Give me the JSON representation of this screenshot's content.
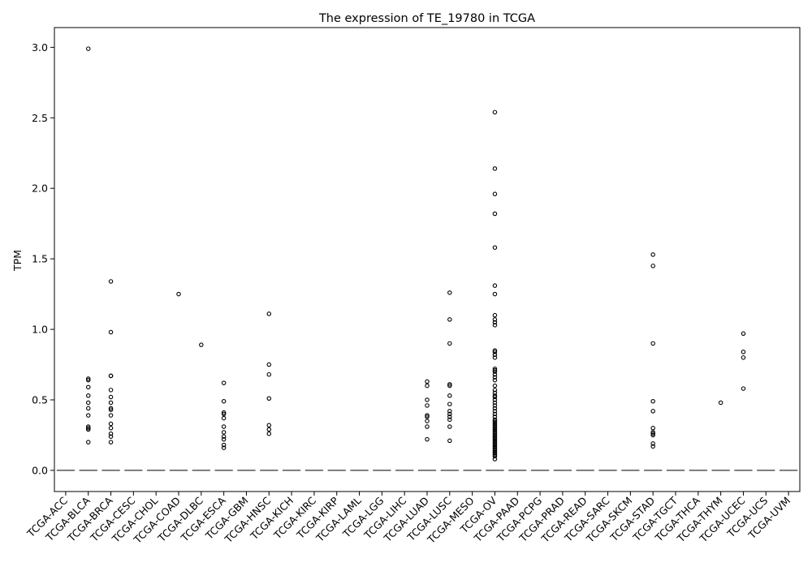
{
  "chart_data": {
    "type": "box",
    "title": "The expression of TE_19780 in TCGA",
    "xlabel": "",
    "ylabel": "TPM",
    "ylim": [
      -0.15,
      3.14
    ],
    "yticks": [
      "0.0",
      "0.5",
      "1.0",
      "1.5",
      "2.0",
      "2.5",
      "3.0"
    ],
    "ytick_values": [
      0.0,
      0.5,
      1.0,
      1.5,
      2.0,
      2.5,
      3.0
    ],
    "grid": false,
    "legend": "none",
    "colors": {
      "box_line": "#555555",
      "outlier": "#000000",
      "axis": "#000000"
    },
    "categories": [
      "TCGA-ACC",
      "TCGA-BLCA",
      "TCGA-BRCA",
      "TCGA-CESC",
      "TCGA-CHOL",
      "TCGA-COAD",
      "TCGA-DLBC",
      "TCGA-ESCA",
      "TCGA-GBM",
      "TCGA-HNSC",
      "TCGA-KICH",
      "TCGA-KIRC",
      "TCGA-KIRP",
      "TCGA-LAML",
      "TCGA-LGG",
      "TCGA-LIHC",
      "TCGA-LUAD",
      "TCGA-LUSC",
      "TCGA-MESO",
      "TCGA-OV",
      "TCGA-PAAD",
      "TCGA-PCPG",
      "TCGA-PRAD",
      "TCGA-READ",
      "TCGA-SARC",
      "TCGA-SKCM",
      "TCGA-STAD",
      "TCGA-TGCT",
      "TCGA-THCA",
      "TCGA-THYM",
      "TCGA-UCEC",
      "TCGA-UCS",
      "TCGA-UVM"
    ],
    "median": [
      0,
      0,
      0,
      0,
      0,
      0,
      0,
      0,
      0,
      0,
      0,
      0,
      0,
      0,
      0,
      0,
      0,
      0,
      0,
      0,
      0,
      0,
      0,
      0,
      0,
      0,
      0,
      0,
      0,
      0,
      0,
      0,
      0
    ],
    "outliers": [
      [],
      [
        2.99,
        0.65,
        0.64,
        0.59,
        0.53,
        0.48,
        0.44,
        0.39,
        0.31,
        0.3,
        0.29,
        0.2
      ],
      [
        1.34,
        0.98,
        0.67,
        0.67,
        0.57,
        0.52,
        0.48,
        0.44,
        0.43,
        0.39,
        0.33,
        0.3,
        0.26,
        0.24,
        0.2
      ],
      [],
      [],
      [
        1.25
      ],
      [
        0.89
      ],
      [
        0.62,
        0.49,
        0.41,
        0.4,
        0.37,
        0.31,
        0.27,
        0.24,
        0.22,
        0.18,
        0.16
      ],
      [],
      [
        1.11,
        0.75,
        0.68,
        0.51,
        0.32,
        0.29,
        0.26
      ],
      [],
      [],
      [],
      [],
      [],
      [],
      [
        0.63,
        0.6,
        0.5,
        0.46,
        0.39,
        0.38,
        0.35,
        0.31,
        0.22
      ],
      [
        1.26,
        1.07,
        0.9,
        0.61,
        0.6,
        0.53,
        0.47,
        0.42,
        0.4,
        0.38,
        0.36,
        0.31,
        0.21
      ],
      [],
      [
        2.54,
        2.14,
        1.96,
        1.82,
        1.58,
        1.31,
        1.25,
        1.1,
        1.07,
        1.05,
        1.03,
        0.85,
        0.84,
        0.82,
        0.8,
        0.72,
        0.71,
        0.7,
        0.68,
        0.66,
        0.64,
        0.6,
        0.57,
        0.55,
        0.53,
        0.52,
        0.5,
        0.48,
        0.46,
        0.44,
        0.42,
        0.4,
        0.38,
        0.36,
        0.35,
        0.34,
        0.33,
        0.32,
        0.31,
        0.3,
        0.29,
        0.28,
        0.27,
        0.26,
        0.25,
        0.24,
        0.23,
        0.22,
        0.21,
        0.2,
        0.19,
        0.18,
        0.17,
        0.16,
        0.15,
        0.14,
        0.13,
        0.12,
        0.11,
        0.1,
        0.08
      ],
      [],
      [],
      [],
      [],
      [],
      [],
      [
        1.53,
        1.45,
        0.9,
        0.49,
        0.42,
        0.3,
        0.27,
        0.26,
        0.25,
        0.19,
        0.17
      ],
      [],
      [],
      [
        0.48
      ],
      [
        0.97,
        0.84,
        0.8,
        0.58
      ],
      [],
      []
    ]
  }
}
